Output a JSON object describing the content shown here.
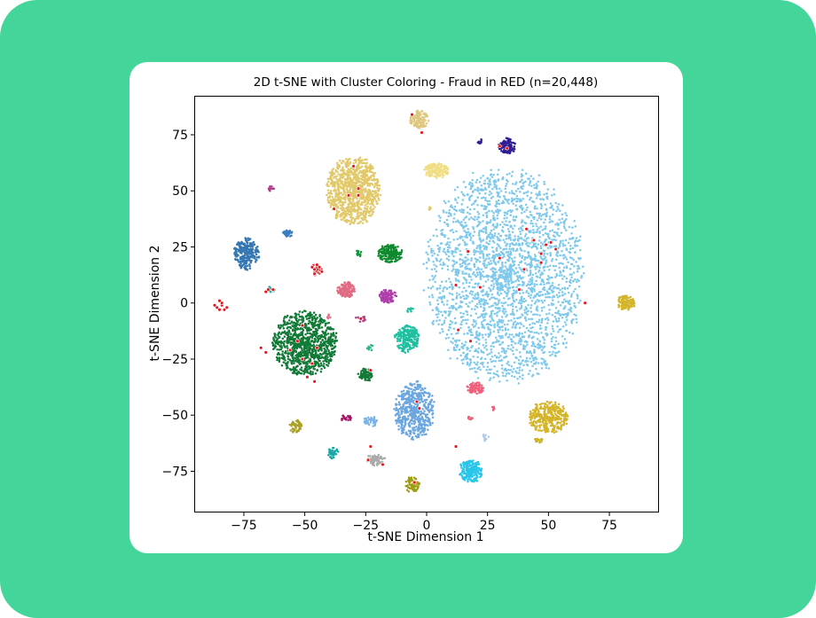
{
  "chart_data": {
    "type": "scatter",
    "title": "2D t-SNE with Cluster Coloring - Fraud in RED (n=20,448)",
    "xlabel": "t-SNE Dimension 1",
    "ylabel": "t-SNE Dimension 2",
    "xlim": [
      -95,
      95
    ],
    "ylim": [
      -93,
      92
    ],
    "xticks": [
      -75,
      -50,
      -25,
      0,
      25,
      50,
      75
    ],
    "yticks": [
      -75,
      -50,
      -25,
      0,
      25,
      50,
      75
    ],
    "xtick_labels": [
      "−75",
      "−50",
      "−25",
      "0",
      "25",
      "50",
      "75"
    ],
    "ytick_labels": [
      "−75",
      "−50",
      "−25",
      "0",
      "25",
      "50",
      "75"
    ],
    "grid": false,
    "fraud_color": "#e8141c",
    "clusters": [
      {
        "cx": 32,
        "cy": 12,
        "rx": 32,
        "ry": 47,
        "color": "#7ec9ec",
        "n": 2600
      },
      {
        "cx": -30,
        "cy": 50,
        "rx": 11,
        "ry": 15,
        "color": "#e1c96a",
        "n": 900
      },
      {
        "cx": -50,
        "cy": -18,
        "rx": 13,
        "ry": 14,
        "color": "#117a36",
        "n": 1000
      },
      {
        "cx": -5,
        "cy": -48,
        "rx": 8,
        "ry": 13,
        "color": "#6ba6df",
        "n": 500
      },
      {
        "cx": 50,
        "cy": -51,
        "rx": 8,
        "ry": 7,
        "color": "#d4b52a",
        "n": 350
      },
      {
        "cx": -74,
        "cy": 22,
        "rx": 5,
        "ry": 7,
        "color": "#3477b3",
        "n": 250
      },
      {
        "cx": -8,
        "cy": -16,
        "rx": 5,
        "ry": 6,
        "color": "#1fbf9f",
        "n": 220
      },
      {
        "cx": 18,
        "cy": -75,
        "rx": 5,
        "ry": 5,
        "color": "#29c5ea",
        "n": 200
      },
      {
        "cx": 4,
        "cy": 59,
        "rx": 5,
        "ry": 3.5,
        "color": "#f1dd82",
        "n": 150
      },
      {
        "cx": -3,
        "cy": 82,
        "rx": 4,
        "ry": 4,
        "color": "#dfc77c",
        "n": 110
      },
      {
        "cx": 33,
        "cy": 70,
        "rx": 3.5,
        "ry": 3.5,
        "color": "#2f1e93",
        "n": 110
      },
      {
        "cx": -15,
        "cy": 22,
        "rx": 5,
        "ry": 4,
        "color": "#0f8a2e",
        "n": 180
      },
      {
        "cx": -33,
        "cy": 6,
        "rx": 3.5,
        "ry": 3.5,
        "color": "#e06b82",
        "n": 120
      },
      {
        "cx": -16,
        "cy": 3,
        "rx": 3.5,
        "ry": 3,
        "color": "#b03eaa",
        "n": 110
      },
      {
        "cx": 82,
        "cy": 0,
        "rx": 4,
        "ry": 3.5,
        "color": "#d4b52a",
        "n": 110
      },
      {
        "cx": 20,
        "cy": -38,
        "rx": 3.5,
        "ry": 2.5,
        "color": "#f0607a",
        "n": 90
      },
      {
        "cx": -25,
        "cy": -32,
        "rx": 3,
        "ry": 3,
        "color": "#137a35",
        "n": 80
      },
      {
        "cx": -21,
        "cy": -70,
        "rx": 4,
        "ry": 2.5,
        "color": "#aaaaaa",
        "n": 80
      },
      {
        "cx": -6,
        "cy": -81,
        "rx": 3,
        "ry": 3.5,
        "color": "#9d9e12",
        "n": 80
      },
      {
        "cx": -54,
        "cy": -55,
        "rx": 3,
        "ry": 3,
        "color": "#aaa024",
        "n": 50
      },
      {
        "cx": -23,
        "cy": -53,
        "rx": 3,
        "ry": 2.5,
        "color": "#7ab3e8",
        "n": 40
      },
      {
        "cx": -38,
        "cy": -67,
        "rx": 2.5,
        "ry": 2.5,
        "color": "#17a6a6",
        "n": 35
      },
      {
        "cx": -57,
        "cy": 31,
        "rx": 2,
        "ry": 1.5,
        "color": "#3a7dc0",
        "n": 30
      },
      {
        "cx": -64,
        "cy": 51,
        "rx": 1.5,
        "ry": 1,
        "color": "#b4388a",
        "n": 12
      },
      {
        "cx": -33,
        "cy": -51,
        "rx": 2.5,
        "ry": 1.5,
        "color": "#a01462",
        "n": 20
      },
      {
        "cx": -45,
        "cy": 15,
        "rx": 2,
        "ry": 3,
        "color": "#d44a4a",
        "n": 30
      },
      {
        "cx": -64,
        "cy": 6,
        "rx": 2,
        "ry": 1.2,
        "color": "#31a697",
        "n": 16
      },
      {
        "cx": -28,
        "cy": 22,
        "rx": 1.2,
        "ry": 1.5,
        "color": "#13943d",
        "n": 12
      },
      {
        "cx": -27,
        "cy": -7,
        "rx": 2.5,
        "ry": 1.5,
        "color": "#b03e8c",
        "n": 14
      },
      {
        "cx": -23,
        "cy": -20,
        "rx": 1.5,
        "ry": 1.2,
        "color": "#2ab58a",
        "n": 10
      },
      {
        "cx": 46,
        "cy": -61,
        "rx": 1.5,
        "ry": 1.5,
        "color": "#c9b52a",
        "n": 14
      },
      {
        "cx": 24,
        "cy": -60,
        "rx": 1.5,
        "ry": 1.5,
        "color": "#aec8ea",
        "n": 10
      },
      {
        "cx": 18,
        "cy": -51,
        "rx": 1,
        "ry": 1.2,
        "color": "#f0607a",
        "n": 8
      },
      {
        "cx": 27,
        "cy": -47,
        "rx": 1,
        "ry": 1,
        "color": "#f0607a",
        "n": 6
      },
      {
        "cx": -40,
        "cy": -6,
        "rx": 1,
        "ry": 1,
        "color": "#e06b82",
        "n": 5
      },
      {
        "cx": -7,
        "cy": -3,
        "rx": 1.5,
        "ry": 1.2,
        "color": "#1fbf9f",
        "n": 8
      },
      {
        "cx": 22,
        "cy": 72,
        "rx": 1.2,
        "ry": 1,
        "color": "#2f1e93",
        "n": 10
      },
      {
        "cx": 1,
        "cy": 42,
        "rx": 1,
        "ry": 0.8,
        "color": "#e1c96a",
        "n": 6
      }
    ],
    "fraud_points": [
      [
        -84,
        -1
      ],
      [
        -86,
        -2
      ],
      [
        -83,
        -3
      ],
      [
        -85,
        1
      ],
      [
        -82,
        -2
      ],
      [
        -87,
        -1
      ],
      [
        -84,
        0
      ],
      [
        -85,
        -3
      ],
      [
        -46,
        15
      ],
      [
        -44,
        16
      ],
      [
        -46,
        13
      ],
      [
        -45,
        17
      ],
      [
        -43,
        14
      ],
      [
        -47,
        16
      ],
      [
        -63,
        6
      ],
      [
        -65,
        6
      ],
      [
        -66,
        5
      ],
      [
        -30,
        61
      ],
      [
        -28,
        51
      ],
      [
        -28,
        48
      ],
      [
        -38,
        42
      ],
      [
        -32,
        48
      ],
      [
        -51,
        -25
      ],
      [
        -56,
        -21
      ],
      [
        -51,
        -10
      ],
      [
        -47,
        -27
      ],
      [
        -45,
        -20
      ],
      [
        -53,
        -17
      ],
      [
        -68,
        -20
      ],
      [
        -66,
        -22
      ],
      [
        -49,
        -33
      ],
      [
        -46,
        -35
      ],
      [
        41,
        33
      ],
      [
        44,
        28
      ],
      [
        49,
        26
      ],
      [
        51,
        27
      ],
      [
        53,
        24
      ],
      [
        47,
        22
      ],
      [
        47,
        18
      ],
      [
        40,
        15
      ],
      [
        30,
        20
      ],
      [
        17,
        23
      ],
      [
        22,
        7
      ],
      [
        38,
        6
      ],
      [
        12,
        8
      ],
      [
        13,
        -12
      ],
      [
        18,
        -17
      ],
      [
        65,
        0
      ],
      [
        33,
        69
      ],
      [
        30,
        70
      ],
      [
        -6,
        84
      ],
      [
        -2,
        76
      ],
      [
        -4,
        -44
      ],
      [
        -3,
        -47
      ],
      [
        -23,
        -30
      ],
      [
        -24,
        -70
      ],
      [
        -27,
        -7
      ],
      [
        -23,
        -64
      ],
      [
        12,
        -64
      ],
      [
        -18,
        -72
      ],
      [
        -5,
        -80
      ]
    ]
  }
}
